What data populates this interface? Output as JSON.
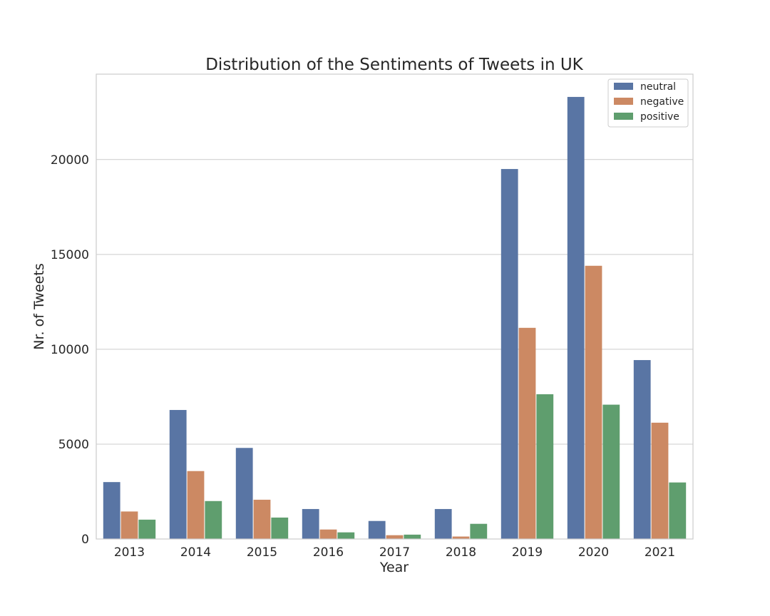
{
  "chart_data": {
    "type": "bar",
    "title": "Distribution of the Sentiments of Tweets in UK",
    "xlabel": "Year",
    "ylabel": "Nr. of Tweets",
    "categories": [
      "2013",
      "2014",
      "2015",
      "2016",
      "2017",
      "2018",
      "2019",
      "2020",
      "2021"
    ],
    "series": [
      {
        "name": "neutral",
        "color": "#5975a4",
        "values": [
          3000,
          6800,
          4800,
          1580,
          950,
          1580,
          19500,
          23300,
          9430
        ]
      },
      {
        "name": "negative",
        "color": "#cc8963",
        "values": [
          1450,
          3580,
          2070,
          500,
          200,
          130,
          11130,
          14400,
          6130
        ]
      },
      {
        "name": "positive",
        "color": "#5f9e6e",
        "values": [
          1020,
          2000,
          1130,
          350,
          230,
          800,
          7630,
          7080,
          2980
        ]
      }
    ],
    "ylim": [
      0,
      24500
    ],
    "yticks": [
      0,
      5000,
      10000,
      15000,
      20000
    ],
    "grid": true,
    "legend_position": "top-right"
  }
}
